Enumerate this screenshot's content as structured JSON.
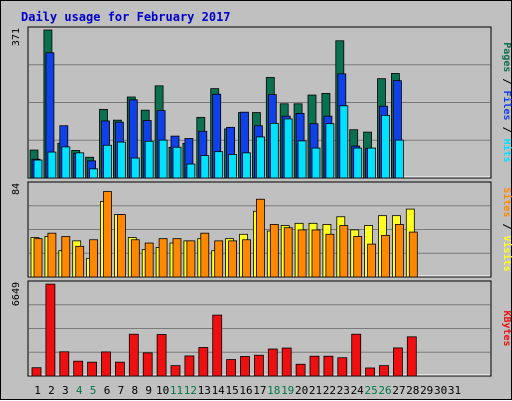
{
  "title": "Daily usage for February 2017",
  "colors": {
    "background": "#c0c0c0",
    "title": "#0000cc",
    "hits": "#00e0ff",
    "files": "#1040e8",
    "pages": "#0b7050",
    "visits": "#ffff20",
    "sites": "#ff8800",
    "kbytes": "#ee1010",
    "weekend_label": "#007744"
  },
  "chart_data": [
    {
      "type": "bar",
      "panel": "hits-files-pages",
      "ylabel_parts": [
        "Pages",
        "Files",
        "Hits"
      ],
      "ylabel_separator": " / ",
      "ymax": 371,
      "ymax_label": "371",
      "categories": [
        "1",
        "2",
        "3",
        "4",
        "5",
        "6",
        "7",
        "8",
        "9",
        "10",
        "11",
        "12",
        "13",
        "14",
        "15",
        "16",
        "17",
        "18",
        "19",
        "20",
        "21",
        "22",
        "23",
        "24",
        "25",
        "26",
        "27",
        "28",
        "29",
        "30",
        "31"
      ],
      "weekend_days": [
        4,
        5,
        11,
        12,
        18,
        19,
        25,
        26
      ],
      "series": [
        {
          "name": "Pages",
          "values": [
            70,
            371,
            87,
            69,
            52,
            172,
            145,
            203,
            170,
            231,
            77,
            87,
            152,
            224,
            123,
            164,
            164,
            252,
            186,
            186,
            208,
            212,
            344,
            121,
            115,
            249,
            262,
            0,
            0,
            0,
            0
          ]
        },
        {
          "name": "Files",
          "values": [
            47,
            314,
            131,
            62,
            43,
            143,
            140,
            196,
            144,
            169,
            105,
            99,
            117,
            210,
            127,
            165,
            131,
            209,
            155,
            162,
            136,
            155,
            261,
            80,
            74,
            180,
            244,
            0,
            0,
            0,
            0
          ]
        },
        {
          "name": "Hits",
          "values": [
            45,
            65,
            78,
            63,
            23,
            82,
            90,
            50,
            92,
            95,
            77,
            35,
            56,
            66,
            59,
            63,
            103,
            137,
            148,
            93,
            75,
            136,
            181,
            75,
            75,
            157,
            95,
            0,
            0,
            0,
            0
          ]
        }
      ]
    },
    {
      "type": "bar",
      "panel": "visits-sites",
      "ylabel_parts": [
        "Sites",
        "Visits"
      ],
      "ylabel_separator": " / ",
      "ymax": 84,
      "ymax_label": "84",
      "categories": [
        "1",
        "2",
        "3",
        "4",
        "5",
        "6",
        "7",
        "8",
        "9",
        "10",
        "11",
        "12",
        "13",
        "14",
        "15",
        "16",
        "17",
        "18",
        "19",
        "20",
        "21",
        "22",
        "23",
        "24",
        "25",
        "26",
        "27",
        "28",
        "29",
        "30",
        "31"
      ],
      "weekend_days": [
        4,
        5,
        11,
        12,
        18,
        19,
        25,
        26
      ],
      "series": [
        {
          "name": "Visits",
          "values": [
            36,
            37,
            24,
            33,
            17,
            69,
            57,
            36,
            25,
            27,
            31,
            33,
            35,
            24,
            35,
            39,
            60,
            42,
            47,
            49,
            49,
            48,
            55,
            43,
            47,
            56,
            56,
            62,
            0,
            0,
            0
          ]
        },
        {
          "name": "Sites",
          "values": [
            35,
            40,
            37,
            28,
            34,
            78,
            57,
            34,
            31,
            35,
            35,
            33,
            40,
            33,
            33,
            34,
            71,
            48,
            45,
            43,
            43,
            39,
            47,
            37,
            30,
            38,
            48,
            41,
            0,
            0,
            0
          ]
        }
      ]
    },
    {
      "type": "bar",
      "panel": "kbytes",
      "ylabel_parts": [
        "KBytes"
      ],
      "ylabel_separator": " / ",
      "ymax": 6649,
      "ymax_label": "6649",
      "categories": [
        "1",
        "2",
        "3",
        "4",
        "5",
        "6",
        "7",
        "8",
        "9",
        "10",
        "11",
        "12",
        "13",
        "14",
        "15",
        "16",
        "17",
        "18",
        "19",
        "20",
        "21",
        "22",
        "23",
        "24",
        "25",
        "26",
        "27",
        "28",
        "29",
        "30",
        "31"
      ],
      "weekend_days": [
        4,
        5,
        11,
        12,
        18,
        19,
        25,
        26
      ],
      "series": [
        {
          "name": "KBytes",
          "values": [
            600,
            6640,
            1750,
            1070,
            1000,
            1740,
            1000,
            3020,
            1670,
            3000,
            750,
            1450,
            2060,
            4400,
            1190,
            1410,
            1500,
            1950,
            2020,
            850,
            1430,
            1430,
            1320,
            3020,
            580,
            750,
            2030,
            2830,
            0,
            0,
            0
          ]
        }
      ]
    }
  ]
}
